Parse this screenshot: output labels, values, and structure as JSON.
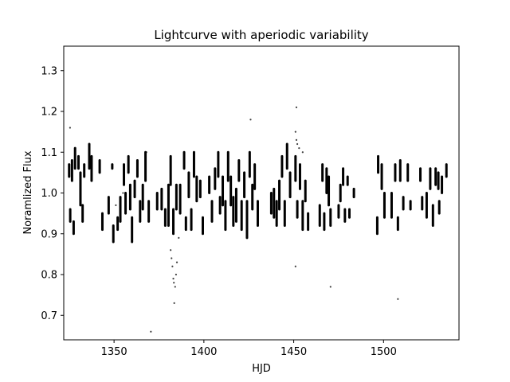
{
  "chart_data": {
    "type": "scatter",
    "title": "Lightcurve with aperiodic variability",
    "xlabel": "HJD",
    "ylabel": "Noramlized Flux",
    "xlim": [
      1322,
      1542
    ],
    "ylim": [
      0.64,
      1.36
    ],
    "xticks": [
      1350,
      1400,
      1450,
      1500
    ],
    "yticks": [
      0.7,
      0.8,
      0.9,
      1.0,
      1.1,
      1.2,
      1.3
    ],
    "grid": false,
    "marker_color": "#000000",
    "series": [
      {
        "segments": [
          [
            1325.0,
            1.07,
            1.04
          ],
          [
            1325.6,
            0.96,
            0.93
          ],
          [
            1326.6,
            1.08,
            1.03
          ],
          [
            1327.5,
            0.93,
            0.9
          ],
          [
            1328.3,
            1.11,
            1.06
          ],
          [
            1330.2,
            1.09,
            1.06
          ],
          [
            1331.3,
            1.05,
            0.97
          ],
          [
            1332.5,
            0.97,
            0.93
          ],
          [
            1333.4,
            1.07,
            1.04
          ],
          [
            1336.2,
            1.12,
            1.06
          ],
          [
            1337.5,
            1.09,
            1.03
          ],
          [
            1342.0,
            1.08,
            1.05
          ],
          [
            1343.5,
            0.95,
            0.91
          ],
          [
            1347.0,
            0.99,
            0.95
          ],
          [
            1349.0,
            1.07,
            1.06
          ],
          [
            1349.6,
            0.92,
            0.88
          ],
          [
            1352.0,
            0.94,
            0.91
          ],
          [
            1353.5,
            0.99,
            0.93
          ],
          [
            1355.5,
            1.07,
            1.02
          ],
          [
            1356.4,
            1.0,
            0.95
          ],
          [
            1358.0,
            1.09,
            1.05
          ],
          [
            1359.0,
            1.02,
            0.96
          ],
          [
            1360.0,
            0.94,
            0.88
          ],
          [
            1361.5,
            1.03,
            0.99
          ],
          [
            1363.0,
            1.08,
            1.04
          ],
          [
            1364.5,
            0.98,
            0.93
          ],
          [
            1366.0,
            1.02,
            0.96
          ],
          [
            1367.5,
            1.1,
            1.03
          ],
          [
            1369.3,
            0.98,
            0.93
          ],
          [
            1374.0,
            1.0,
            0.96
          ],
          [
            1376.5,
            1.01,
            0.96
          ],
          [
            1378.5,
            0.96,
            0.92
          ],
          [
            1380.3,
            1.02,
            0.92
          ],
          [
            1381.5,
            1.09,
            1.02
          ],
          [
            1383.0,
            0.96,
            0.9
          ],
          [
            1384.7,
            1.02,
            0.96
          ],
          [
            1386.8,
            1.02,
            0.95
          ],
          [
            1389.0,
            1.1,
            1.06
          ],
          [
            1390.0,
            0.94,
            0.91
          ],
          [
            1391.6,
            1.05,
            0.99
          ],
          [
            1393.0,
            0.96,
            0.91
          ],
          [
            1394.5,
            1.1,
            1.04
          ],
          [
            1396.0,
            1.04,
            0.98
          ],
          [
            1398.0,
            1.03,
            0.99
          ],
          [
            1399.4,
            0.94,
            0.9
          ],
          [
            1403.0,
            1.04,
            1.0
          ],
          [
            1404.5,
            0.98,
            0.93
          ],
          [
            1406.2,
            1.06,
            1.01
          ],
          [
            1408.0,
            1.1,
            1.04
          ],
          [
            1409.0,
            0.99,
            0.95
          ],
          [
            1410.5,
            1.04,
            0.97
          ],
          [
            1412.0,
            0.98,
            0.91
          ],
          [
            1413.5,
            1.1,
            1.03
          ],
          [
            1415.0,
            1.04,
            0.97
          ],
          [
            1416.4,
            0.99,
            0.92
          ],
          [
            1418.0,
            1.01,
            0.93
          ],
          [
            1419.5,
            1.08,
            1.03
          ],
          [
            1421.0,
            0.98,
            0.91
          ],
          [
            1422.5,
            1.05,
            0.99
          ],
          [
            1424.0,
            0.98,
            0.89
          ],
          [
            1425.5,
            1.1,
            1.04
          ],
          [
            1427.0,
            1.02,
            0.96
          ],
          [
            1428.3,
            1.07,
            1.01
          ],
          [
            1430.0,
            0.98,
            0.92
          ],
          [
            1437.5,
            1.0,
            0.95
          ],
          [
            1439.0,
            1.01,
            0.94
          ],
          [
            1440.5,
            0.98,
            0.92
          ],
          [
            1442.0,
            1.03,
            0.96
          ],
          [
            1443.5,
            1.09,
            1.04
          ],
          [
            1445.0,
            0.98,
            0.92
          ],
          [
            1446.3,
            1.12,
            1.06
          ],
          [
            1448.0,
            1.05,
            0.99
          ],
          [
            1451.0,
            1.09,
            1.03
          ],
          [
            1452.0,
            0.98,
            0.94
          ],
          [
            1453.5,
            1.07,
            1.01
          ],
          [
            1455.0,
            0.98,
            0.91
          ],
          [
            1456.5,
            1.03,
            0.98
          ],
          [
            1458.0,
            0.95,
            0.91
          ],
          [
            1464.5,
            0.97,
            0.92
          ],
          [
            1466.0,
            1.07,
            1.03
          ],
          [
            1467.0,
            0.95,
            0.91
          ],
          [
            1468.3,
            1.06,
            1.0
          ],
          [
            1469.5,
            1.04,
            0.97
          ],
          [
            1470.5,
            0.96,
            0.92
          ],
          [
            1475.0,
            0.97,
            0.94
          ],
          [
            1476.0,
            1.02,
            0.98
          ],
          [
            1477.5,
            1.06,
            1.02
          ],
          [
            1478.5,
            0.96,
            0.93
          ],
          [
            1480.0,
            1.04,
            1.02
          ],
          [
            1481.0,
            0.96,
            0.94
          ],
          [
            1483.5,
            1.01,
            0.99
          ],
          [
            1496.5,
            0.94,
            0.9
          ],
          [
            1497.0,
            1.09,
            1.05
          ],
          [
            1499.0,
            1.07,
            1.01
          ],
          [
            1500.5,
            1.0,
            0.94
          ],
          [
            1504.5,
            1.0,
            0.94
          ],
          [
            1506.5,
            1.07,
            1.03
          ],
          [
            1508.0,
            0.94,
            0.91
          ],
          [
            1509.3,
            1.08,
            1.03
          ],
          [
            1511.0,
            0.99,
            0.96
          ],
          [
            1513.5,
            1.07,
            1.03
          ],
          [
            1515.0,
            0.98,
            0.96
          ],
          [
            1520.5,
            1.06,
            1.03
          ],
          [
            1521.5,
            0.99,
            0.96
          ],
          [
            1524.0,
            1.0,
            0.94
          ],
          [
            1526.0,
            1.06,
            1.01
          ],
          [
            1527.5,
            0.97,
            0.92
          ],
          [
            1529.0,
            1.06,
            1.02
          ],
          [
            1530.5,
            1.05,
            1.01
          ],
          [
            1531.0,
            0.98,
            0.95
          ],
          [
            1532.5,
            1.04,
            1.0
          ],
          [
            1535.0,
            1.07,
            1.04
          ]
        ],
        "outliers": [
          [
            1325.5,
            1.16
          ],
          [
            1351.0,
            0.97
          ],
          [
            1355.0,
            1.0
          ],
          [
            1368.0,
            1.1
          ],
          [
            1370.5,
            0.66
          ],
          [
            1381.5,
            0.86
          ],
          [
            1382.0,
            0.84
          ],
          [
            1382.5,
            0.82
          ],
          [
            1383.0,
            0.79
          ],
          [
            1383.3,
            0.78
          ],
          [
            1383.5,
            0.73
          ],
          [
            1384.0,
            0.77
          ],
          [
            1384.5,
            0.8
          ],
          [
            1385.0,
            0.83
          ],
          [
            1386.0,
            0.89
          ],
          [
            1426.0,
            1.18
          ],
          [
            1451.5,
            1.21
          ],
          [
            1451.0,
            1.15
          ],
          [
            1451.5,
            1.13
          ],
          [
            1452.0,
            1.12
          ],
          [
            1453.0,
            1.11
          ],
          [
            1455.0,
            1.1
          ],
          [
            1451.0,
            0.82
          ],
          [
            1470.5,
            0.77
          ],
          [
            1508.0,
            0.74
          ]
        ]
      }
    ]
  }
}
